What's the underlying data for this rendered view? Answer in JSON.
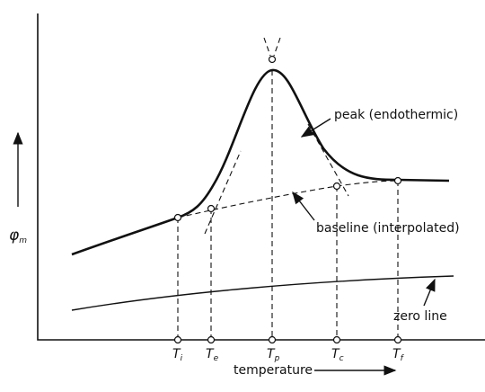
{
  "y_axis_label": {
    "symbol": "φ",
    "subscript": "m"
  },
  "x_axis_label": "temperature",
  "annotations": {
    "peak": "peak (endothermic)",
    "baseline": "baseline (interpolated)",
    "zero_line": "zero line"
  },
  "temperature_marks": [
    {
      "symbol": "T",
      "subscript": "i"
    },
    {
      "symbol": "T",
      "subscript": "e"
    },
    {
      "symbol": "T",
      "subscript": "p"
    },
    {
      "symbol": "T",
      "subscript": "c"
    },
    {
      "symbol": "T",
      "subscript": "f"
    }
  ]
}
